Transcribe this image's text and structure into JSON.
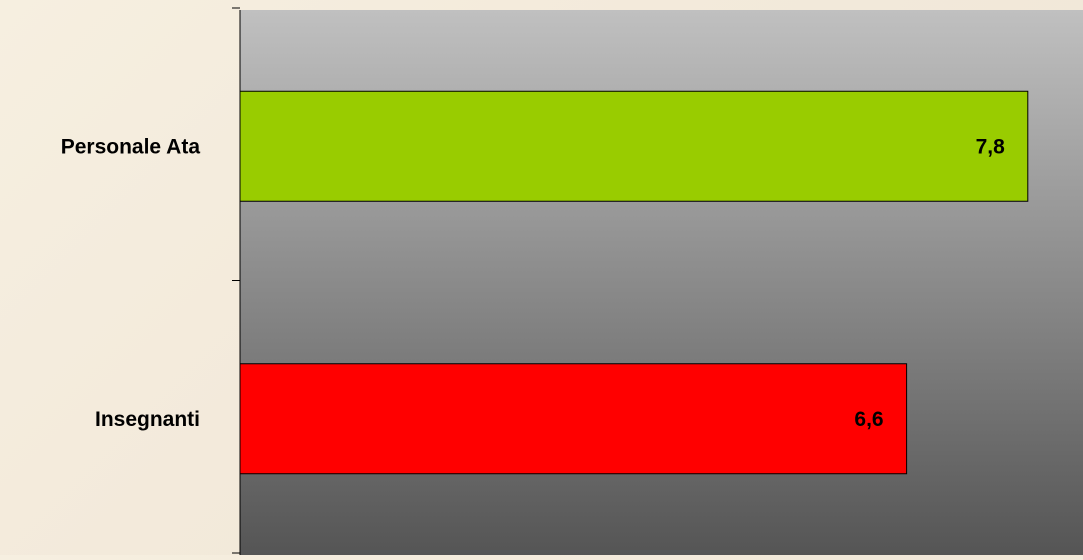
{
  "chart_data": {
    "type": "bar",
    "orientation": "horizontal",
    "title": "",
    "xlabel": "",
    "ylabel": "",
    "categories": [
      "Personale Ata",
      "Insegnanti"
    ],
    "values": [
      7.8,
      6.6
    ],
    "value_labels": [
      "7,8",
      "6,6"
    ],
    "bar_colors": [
      "#99cc00",
      "#ff0000"
    ],
    "plot_background": {
      "top": "#c0c0c0",
      "bottom": "#555555"
    },
    "label_color": "#000000",
    "grid": false,
    "legend": "none"
  }
}
